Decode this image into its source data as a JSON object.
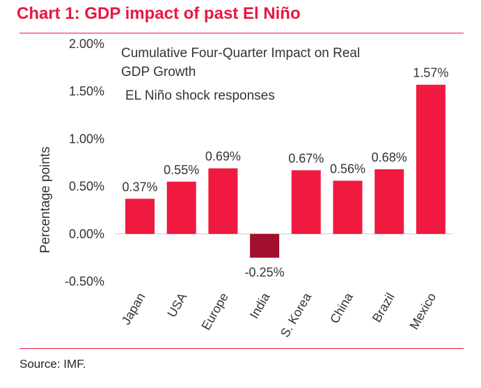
{
  "title": "Chart 1: GDP impact of past El Niño",
  "source": "Source: IMF.",
  "colors": {
    "accent": "#e8173f",
    "positive": "#f0193f",
    "negative": "#a1102e",
    "text": "#333333"
  },
  "chart_data": {
    "type": "bar",
    "annotations": [
      "Cumulative Four-Quarter Impact on Real",
      "GDP Growth",
      "EL Niño shock responses"
    ],
    "ylabel": "Percentage points",
    "xlabel": "",
    "ylim": [
      -0.5,
      2.0
    ],
    "yticks": [
      2.0,
      1.5,
      1.0,
      0.5,
      0.0,
      -0.5
    ],
    "ytick_labels": [
      "2.00%",
      "1.50%",
      "1.00%",
      "0.50%",
      "0.00%",
      "-0.50%"
    ],
    "categories": [
      "Japan",
      "USA",
      "Europe",
      "India",
      "S. Korea",
      "China",
      "Brazil",
      "Mexico"
    ],
    "values": [
      0.37,
      0.55,
      0.69,
      -0.25,
      0.67,
      0.56,
      0.68,
      1.57
    ],
    "data_labels": [
      "0.37%",
      "0.55%",
      "0.69%",
      "-0.25%",
      "0.67%",
      "0.56%",
      "0.68%",
      "1.57%"
    ],
    "grid": false,
    "legend": "none"
  }
}
